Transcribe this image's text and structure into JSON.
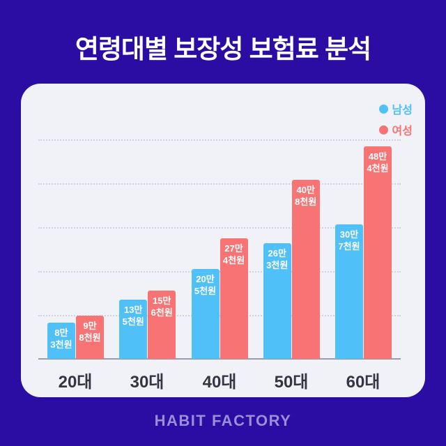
{
  "header": {
    "title": "연령대별 보장성 보험료 분석"
  },
  "footer": {
    "brand": "HABIT FACTORY"
  },
  "colors": {
    "background": "#2b0da3",
    "card": "#f1f1f8",
    "male": "#4fc0f8",
    "female": "#f87474",
    "grid": "#d2d2de",
    "axis": "#9b9baa",
    "category_text": "#353542",
    "title_text": "#ffffff",
    "brand_text": "#9a8fd7"
  },
  "chart_data": {
    "type": "bar",
    "title": "연령대별 보장성 보험료 분석",
    "xlabel": "",
    "ylabel": "",
    "unit": "만원",
    "categories": [
      "20대",
      "30대",
      "40대",
      "50대",
      "60대"
    ],
    "series": [
      {
        "name": "남성",
        "color": "#4fc0f8",
        "values": [
          8.3,
          13.5,
          20.5,
          26.3,
          30.7
        ],
        "labels": [
          [
            "8만",
            "3천원"
          ],
          [
            "13만",
            "5천원"
          ],
          [
            "20만",
            "5천원"
          ],
          [
            "26만",
            "3천원"
          ],
          [
            "30만",
            "7천원"
          ]
        ]
      },
      {
        "name": "여성",
        "color": "#f87474",
        "values": [
          9.8,
          15.6,
          27.4,
          40.8,
          48.4
        ],
        "labels": [
          [
            "9만",
            "8천원"
          ],
          [
            "15만",
            "6천원"
          ],
          [
            "27만",
            "4천원"
          ],
          [
            "40만",
            "8천원"
          ],
          [
            "48만",
            "4천원"
          ]
        ]
      }
    ],
    "ylim": [
      0,
      55
    ],
    "gridlines": [
      10,
      20,
      30,
      40,
      50
    ],
    "grid": true,
    "legend_position": "top-right"
  }
}
